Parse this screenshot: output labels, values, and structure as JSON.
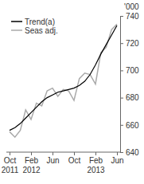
{
  "chart_data": {
    "type": "line",
    "y_label": "'000",
    "categories": [
      "Oct 2011",
      null,
      null,
      null,
      "Feb 2012",
      null,
      null,
      null,
      "Jun",
      null,
      null,
      null,
      "Oct",
      null,
      null,
      null,
      "Feb 2013",
      null,
      null,
      null,
      "Jun"
    ],
    "series": [
      {
        "name": "Trend(a)",
        "color": "#000000",
        "values": [
          656,
          658,
          661,
          665,
          669,
          673,
          677,
          680,
          682,
          684,
          685,
          686,
          687,
          689,
          692,
          697,
          704,
          712,
          719,
          726,
          733
        ]
      },
      {
        "name": "Seas adj.",
        "color": "#aaaaaa",
        "values": [
          655,
          651,
          656,
          671,
          664,
          676,
          674,
          685,
          687,
          681,
          686,
          685,
          678,
          694,
          698,
          697,
          690,
          713,
          717,
          730,
          734
        ]
      }
    ],
    "ylim": [
      640,
      740
    ],
    "yticks": [
      640,
      660,
      680,
      700,
      720,
      740
    ],
    "legend": "top-left",
    "grid": false
  }
}
